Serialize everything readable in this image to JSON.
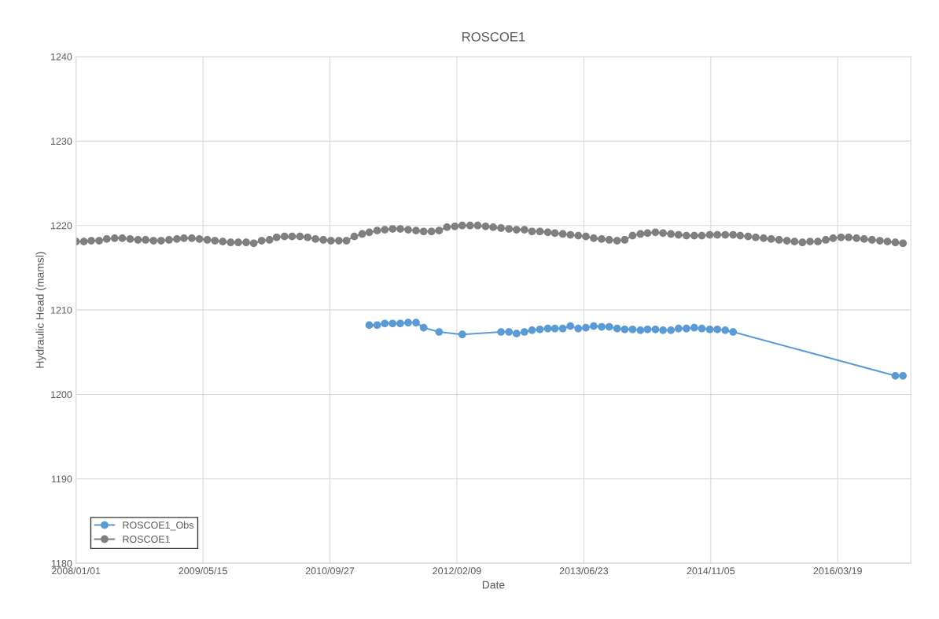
{
  "chart_data": {
    "type": "line",
    "title": "ROSCOE1",
    "xlabel": "Date",
    "ylabel": "Hydraulic Head (mamsl)",
    "xlim": [
      "2008-01-01",
      "2017-01-01"
    ],
    "ylim": [
      1180,
      1240
    ],
    "xticks": [
      {
        "value": "2008-01-01",
        "label": "2008/01/01"
      },
      {
        "value": "2009-05-15",
        "label": "2009/05/15"
      },
      {
        "value": "2010-09-27",
        "label": "2010/09/27"
      },
      {
        "value": "2012-02-09",
        "label": "2012/02/09"
      },
      {
        "value": "2013-06-23",
        "label": "2013/06/23"
      },
      {
        "value": "2014-11-05",
        "label": "2014/11/05"
      },
      {
        "value": "2016-03-19",
        "label": "2016/03/19"
      }
    ],
    "yticks": [
      1180,
      1190,
      1200,
      1210,
      1220,
      1230,
      1240
    ],
    "grid": true,
    "legend": "bottom left",
    "marker": "circle",
    "line_style": "solid",
    "series": [
      {
        "name": "ROSCOE1_Obs",
        "color": "#5b9bd5",
        "x": [
          "2011-03",
          "2011-04",
          "2011-05",
          "2011-06",
          "2011-07",
          "2011-08",
          "2011-09",
          "2011-10",
          "2011-12",
          "2012-03",
          "2012-08",
          "2012-09",
          "2012-10",
          "2012-11",
          "2012-12",
          "2013-01",
          "2013-02",
          "2013-03",
          "2013-04",
          "2013-05",
          "2013-06",
          "2013-07",
          "2013-08",
          "2013-09",
          "2013-10",
          "2013-11",
          "2013-12",
          "2014-01",
          "2014-02",
          "2014-03",
          "2014-04",
          "2014-05",
          "2014-06",
          "2014-07",
          "2014-08",
          "2014-09",
          "2014-10",
          "2014-11",
          "2014-12",
          "2015-01",
          "2015-02",
          "2016-11",
          "2016-12"
        ],
        "values": [
          1208.2,
          1208.2,
          1208.4,
          1208.4,
          1208.4,
          1208.5,
          1208.5,
          1207.9,
          1207.4,
          1207.1,
          1207.4,
          1207.4,
          1207.2,
          1207.4,
          1207.6,
          1207.7,
          1207.8,
          1207.8,
          1207.8,
          1208.1,
          1207.8,
          1207.9,
          1208.1,
          1208.0,
          1208.0,
          1207.8,
          1207.7,
          1207.7,
          1207.6,
          1207.7,
          1207.7,
          1207.6,
          1207.6,
          1207.8,
          1207.8,
          1207.9,
          1207.8,
          1207.7,
          1207.7,
          1207.6,
          1207.4,
          1202.2,
          1202.2
        ]
      },
      {
        "name": "ROSCOE1",
        "color": "#7f7f7f",
        "x": [
          "2008-01",
          "2008-02",
          "2008-03",
          "2008-04",
          "2008-05",
          "2008-06",
          "2008-07",
          "2008-08",
          "2008-09",
          "2008-10",
          "2008-11",
          "2008-12",
          "2009-01",
          "2009-02",
          "2009-03",
          "2009-04",
          "2009-05",
          "2009-06",
          "2009-07",
          "2009-08",
          "2009-09",
          "2009-10",
          "2009-11",
          "2009-12",
          "2010-01",
          "2010-02",
          "2010-03",
          "2010-04",
          "2010-05",
          "2010-06",
          "2010-07",
          "2010-08",
          "2010-09",
          "2010-10",
          "2010-11",
          "2010-12",
          "2011-01",
          "2011-02",
          "2011-03",
          "2011-04",
          "2011-05",
          "2011-06",
          "2011-07",
          "2011-08",
          "2011-09",
          "2011-10",
          "2011-11",
          "2011-12",
          "2012-01",
          "2012-02",
          "2012-03",
          "2012-04",
          "2012-05",
          "2012-06",
          "2012-07",
          "2012-08",
          "2012-09",
          "2012-10",
          "2012-11",
          "2012-12",
          "2013-01",
          "2013-02",
          "2013-03",
          "2013-04",
          "2013-05",
          "2013-06",
          "2013-07",
          "2013-08",
          "2013-09",
          "2013-10",
          "2013-11",
          "2013-12",
          "2014-01",
          "2014-02",
          "2014-03",
          "2014-04",
          "2014-05",
          "2014-06",
          "2014-07",
          "2014-08",
          "2014-09",
          "2014-10",
          "2014-11",
          "2014-12",
          "2015-01",
          "2015-02",
          "2015-03",
          "2015-04",
          "2015-05",
          "2015-06",
          "2015-07",
          "2015-08",
          "2015-09",
          "2015-10",
          "2015-11",
          "2015-12",
          "2016-01",
          "2016-02",
          "2016-03",
          "2016-04",
          "2016-05",
          "2016-06",
          "2016-07",
          "2016-08",
          "2016-09",
          "2016-10",
          "2016-11",
          "2016-12"
        ],
        "values": [
          1218.1,
          1218.1,
          1218.2,
          1218.2,
          1218.4,
          1218.5,
          1218.5,
          1218.4,
          1218.3,
          1218.3,
          1218.2,
          1218.2,
          1218.3,
          1218.4,
          1218.5,
          1218.5,
          1218.4,
          1218.3,
          1218.2,
          1218.1,
          1218.0,
          1218.0,
          1218.0,
          1217.9,
          1218.2,
          1218.3,
          1218.6,
          1218.7,
          1218.7,
          1218.7,
          1218.6,
          1218.4,
          1218.3,
          1218.2,
          1218.2,
          1218.2,
          1218.7,
          1219.0,
          1219.2,
          1219.4,
          1219.5,
          1219.6,
          1219.6,
          1219.5,
          1219.4,
          1219.3,
          1219.3,
          1219.4,
          1219.8,
          1219.9,
          1220.0,
          1220.0,
          1220.0,
          1219.9,
          1219.8,
          1219.7,
          1219.6,
          1219.5,
          1219.5,
          1219.3,
          1219.3,
          1219.2,
          1219.1,
          1219.0,
          1218.9,
          1218.8,
          1218.7,
          1218.5,
          1218.4,
          1218.3,
          1218.2,
          1218.3,
          1218.8,
          1219.0,
          1219.1,
          1219.2,
          1219.1,
          1219.0,
          1218.9,
          1218.8,
          1218.8,
          1218.8,
          1218.9,
          1218.9,
          1218.9,
          1218.9,
          1218.8,
          1218.7,
          1218.6,
          1218.5,
          1218.4,
          1218.3,
          1218.2,
          1218.1,
          1218.0,
          1218.1,
          1218.1,
          1218.3,
          1218.5,
          1218.6,
          1218.6,
          1218.5,
          1218.4,
          1218.3,
          1218.2,
          1218.1,
          1218.0,
          1217.9
        ]
      }
    ]
  }
}
